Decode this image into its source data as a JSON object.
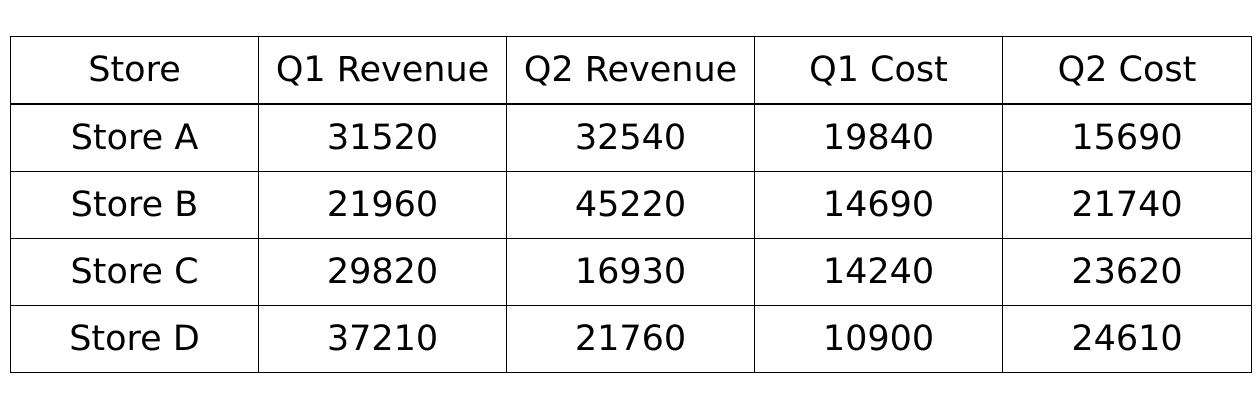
{
  "chart_data": {
    "type": "table",
    "columns": [
      "Store",
      "Q1 Revenue",
      "Q2 Revenue",
      "Q1 Cost",
      "Q2 Cost"
    ],
    "rows": [
      [
        "Store A",
        "31520",
        "32540",
        "19840",
        "15690"
      ],
      [
        "Store B",
        "21960",
        "45220",
        "14690",
        "21740"
      ],
      [
        "Store C",
        "29820",
        "16930",
        "14240",
        "23620"
      ],
      [
        "Store D",
        "37210",
        "21760",
        "10900",
        "24610"
      ]
    ]
  }
}
